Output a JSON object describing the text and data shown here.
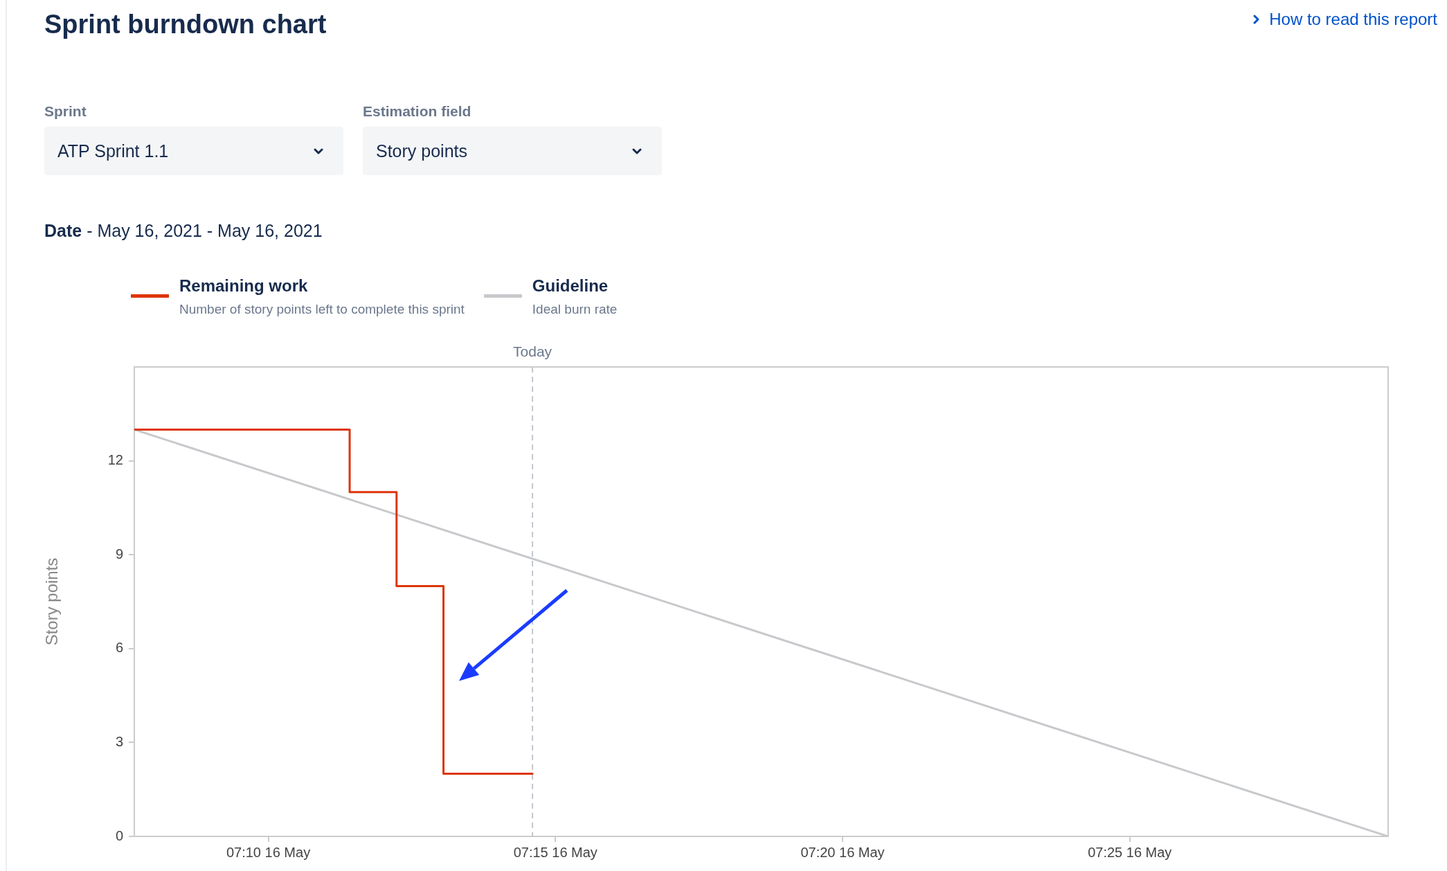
{
  "chart_data": {
    "type": "line",
    "title": "Sprint burndown chart",
    "subtitle": "Date - May 16, 2021 - May 16, 2021",
    "ylabel": "Story points",
    "annotations": [
      "How to read this report",
      "Sprint",
      "ATP Sprint 1.1",
      "Estimation field",
      "Story points",
      "Number of story points left to complete this sprint",
      "Ideal burn rate"
    ],
    "series": [
      {
        "name": "Remaining work",
        "type": "step",
        "color": "#de350b",
        "x": [
          "2021-05-16T07:07:40",
          "2021-05-16T07:11:25",
          "2021-05-16T07:12:14",
          "2021-05-16T07:13:03",
          "2021-05-16T07:14:36"
        ],
        "values": [
          13,
          11,
          8,
          2,
          2
        ]
      },
      {
        "name": "Guideline",
        "color": "#c7c9cc",
        "x": [
          "2021-05-16T07:07:40",
          "2021-05-16T07:29:30"
        ],
        "values": [
          13,
          0
        ]
      }
    ],
    "xlim": [
      "2021-05-16T07:07:40",
      "2021-05-16T07:29:30"
    ],
    "xticks": [
      {
        "value": "2021-05-16T07:10",
        "label": "07:10 16 May"
      },
      {
        "value": "2021-05-16T07:15",
        "label": "07:15 16 May"
      },
      {
        "value": "2021-05-16T07:20",
        "label": "07:20 16 May"
      },
      {
        "value": "2021-05-16T07:25",
        "label": "07:25 16 May"
      }
    ],
    "ylim": [
      0,
      15
    ],
    "yticks": [
      0,
      3,
      6,
      9,
      12
    ],
    "ref_lines": [
      {
        "axis": "x",
        "value": "2021-05-16T07:14:36",
        "label": "Today",
        "color": "#c1c7d0",
        "line_style": "dashed"
      }
    ],
    "legend": "top left"
  }
}
